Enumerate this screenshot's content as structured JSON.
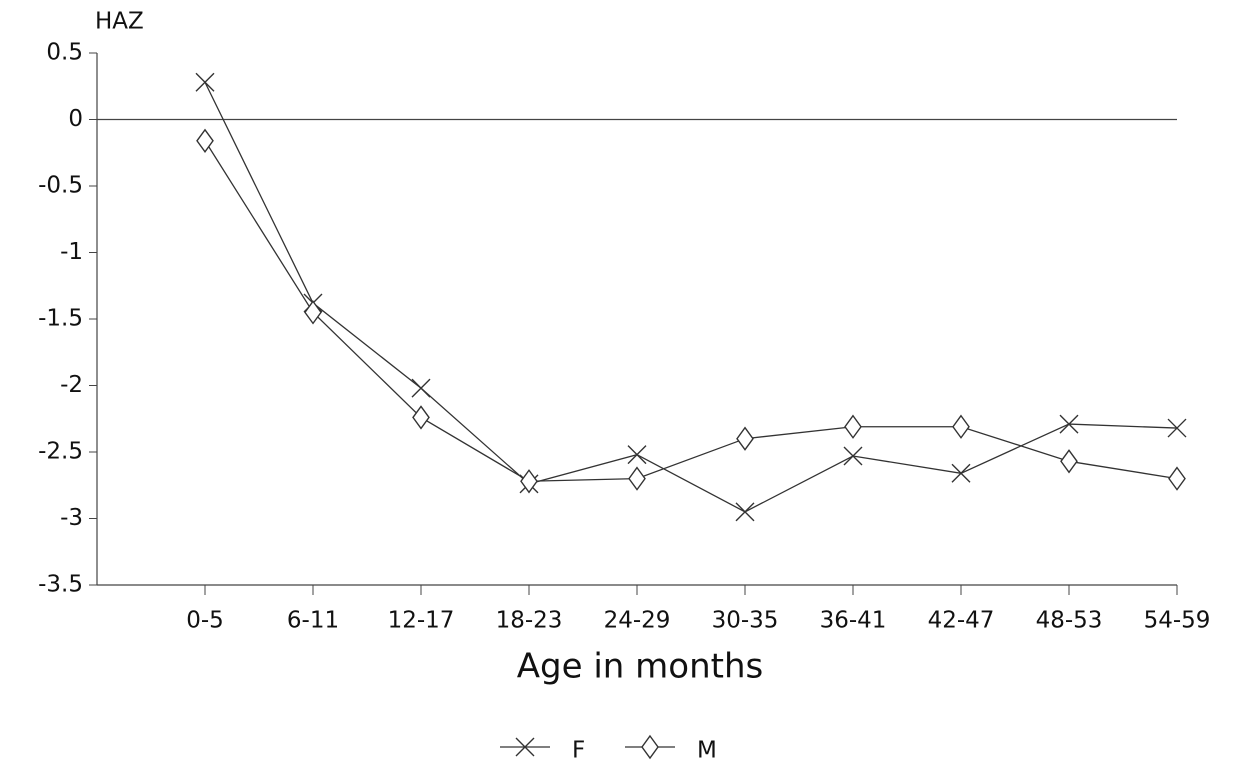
{
  "chart_data": {
    "type": "line",
    "y_label": "HAZ",
    "x_label": "Age in months",
    "categories": [
      "0-5",
      "6-11",
      "12-17",
      "18-23",
      "24-29",
      "30-35",
      "36-41",
      "42-47",
      "48-53",
      "54-59"
    ],
    "series": [
      {
        "name": "F",
        "color": "#333333",
        "marker": "x",
        "values": [
          0.28,
          -1.38,
          -2.02,
          -2.74,
          -2.52,
          -2.95,
          -2.53,
          -2.66,
          -2.29,
          -2.32
        ]
      },
      {
        "name": "M",
        "color": "#333333",
        "marker": "diamond",
        "values": [
          -0.16,
          -1.45,
          -2.24,
          -2.72,
          -2.7,
          -2.4,
          -2.31,
          -2.31,
          -2.57,
          -2.7
        ]
      }
    ],
    "ylim": [
      -3.5,
      0.5
    ],
    "yticks": [
      0.5,
      0,
      -0.5,
      -1,
      -1.5,
      -2,
      -2.5,
      -3,
      -3.5
    ],
    "grid": false,
    "legend": "bottom"
  }
}
